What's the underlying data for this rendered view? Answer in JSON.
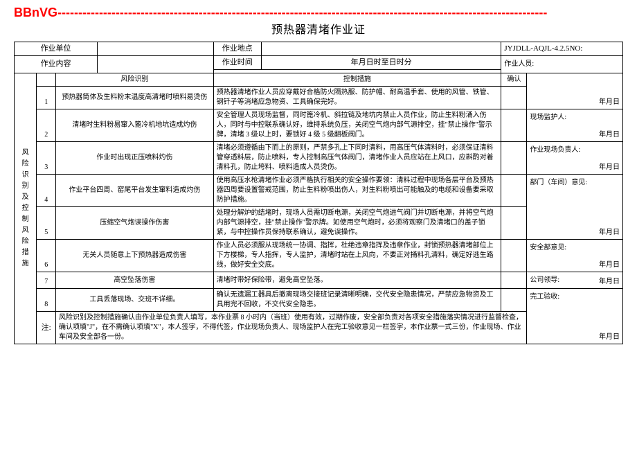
{
  "header_code": "BBnVG",
  "header_dashes": "----------------------------------------------------------------------------------------------------------------------",
  "title": "预热器清堵作业证",
  "labels": {
    "work_unit": "作业单位",
    "work_location": "作业地点",
    "doc_no": "JYJDLL-AQJL-4.2.5NO:",
    "work_content": "作业内容",
    "work_time": "作业时间",
    "time_value": "年月日时至日时分",
    "workers": "作业人员:",
    "section_title": "风险识别及控制风险措施",
    "risk_header": "风险识别",
    "measure_header": "控制措施",
    "confirm_header": "确认",
    "note_label": "注:",
    "ymd": "年月日"
  },
  "side": {
    "s1": "现场监护人:",
    "s2": "作业现场负责人:",
    "s3": "部门（车间）意见:",
    "s4": "安全部意见:",
    "s5": "公司领导:",
    "s6": "完工验收:"
  },
  "rows": [
    {
      "n": "1",
      "risk": "预热器筒体及生料粉末温度高清堵时喷料易烫伤",
      "measure": "预热器清堵作业人员应穿戴好合格防火隔热服、防护帽、耐高温手套、使用的风管、铁管、钢钎子等消堵应急物资、工具确保完好。"
    },
    {
      "n": "2",
      "risk": "清堵时生料粉易窜入篦冷机地坑造成灼伤",
      "measure": "安全管理人员现场监督，同时篦冷机、斜拉链及地坑内禁止人员作业，防止生料粉涌入伤人，同时与中控联系确认好，维持系统负压，关闭空气炮内部气源排空，挂\"禁止操作\"警示牌，清堵 3 级以上时，要锁好 4 级 5 级翻板阀门。"
    },
    {
      "n": "3",
      "risk": "作业时出现正压喷料灼伤",
      "measure": "清堵必须遵循由下而上的原则，严禁多孔上下同时清料，用高压气体清料时，必须保证清料管穿透料层，防止喷料，专人控制高压气体阀门，清堵作业人员应站在上风口，应斟酌对着清料孔，防止垮料、喷料造成人员烫伤。"
    },
    {
      "n": "4",
      "risk": "作业平台四周、窑尾平台发生窜料造成灼伤",
      "measure": "使用高压水枪清堵作业必须严格执行相关的安全操作要领：清料过程中现场各层平台及预热器四周要设置警戒范围，防止生料粉喷出伤人，对生料粉喷出可能触及的电缆和设备要采取防护措施。"
    },
    {
      "n": "5",
      "risk": "压缩空气炮误操作伤害",
      "measure": "处理分解炉的结堵时，现场人员需切断电源，关闭空气炮进气阀门并切断电源，并将空气炮内部气源排空，挂\"禁止操作\"警示牌。如使用空气炮时，必须将观察门及清堵口的盖子锁紧，与中控操作员保持联系确认，避免误操作。"
    },
    {
      "n": "6",
      "risk": "无关人员随意上下预热器造成伤害",
      "measure": "作业人员必须服从现场统一协调、指挥，杜绝违章指挥及违章作业，封锁预热器清堵部位上下方楼梯，专人指挥，专人监护，清堵时站在上风向，不要正对捅料孔清料，确定好逃生路线，做好安全交底。"
    },
    {
      "n": "7",
      "risk": "高空坠落伤害",
      "measure": "清堵时带好保险带，避免高空坠落。"
    },
    {
      "n": "8",
      "risk": "工具丢落现场、交班不详细。",
      "measure": "确认无遗漏工器具后撤离现场交接班记录清晰明确，交代安全隐患情况，严禁应急物资及工具用完不回收，不交代安全隐患。"
    }
  ],
  "note": "风险识别及控制措施确认由作业单位负责人填写，本作业票 8 小时内（当班）使用有效，过期作废，安全部负责对各项安全措施落实情况进行监督检查，确认项填\"J\"，在不需确认项填\"X\"，本人签字，不得代签，作业现场负责人、现场监护人在完工验收意见一栏签字，本作业票一式三份，作业现场、作业车间及安全部各一份。"
}
